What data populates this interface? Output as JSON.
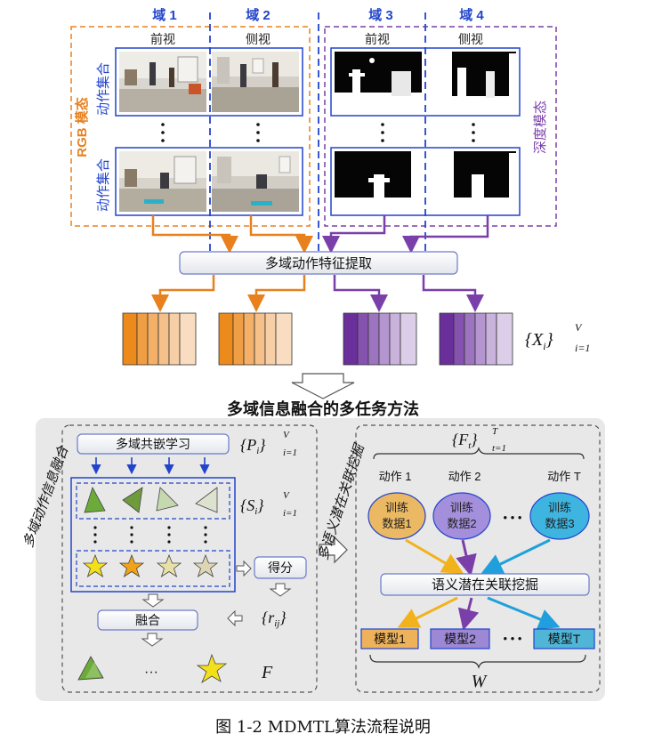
{
  "domains": [
    "域 1",
    "域 2",
    "域 3",
    "域 4"
  ],
  "views": [
    "前视",
    "侧视",
    "前视",
    "侧视"
  ],
  "action_set_label": "动作集合",
  "rgb_modality": "RGB 模态",
  "depth_modality": "深度模态",
  "feature_extraction": "多域动作特征提取",
  "features_set": {
    "base": "{X",
    "sub": "i",
    "close": "}",
    "sup": "V",
    "lim": "i=1"
  },
  "method_title": "多域信息融合的多任务方法",
  "left_panel": {
    "title": "多域动作信息融合",
    "shared_embedding": "多域共嵌学习",
    "p_set": {
      "base": "{P",
      "sub": "i",
      "close": "}",
      "sup": "V",
      "lim": "i=1"
    },
    "s_set": {
      "base": "{S",
      "sub": "i",
      "close": "}",
      "sup": "V",
      "lim": "i=1"
    },
    "score": "得分",
    "r_set": {
      "base": "{r",
      "sub": "ij",
      "close": "}"
    },
    "fusion": "融合",
    "ellipsis": "···",
    "F": "F"
  },
  "right_panel": {
    "title": "多语义潜在关联挖掘",
    "f_set": {
      "base": "{F",
      "sub": "t",
      "close": "}",
      "sup": "T",
      "lim": "t=1"
    },
    "actions": [
      "动作 1",
      "动作 2",
      "动作 T"
    ],
    "training": [
      {
        "line1": "训练",
        "line2": "数据1",
        "color": "#ebb963"
      },
      {
        "line1": "训练",
        "line2": "数据2",
        "color": "#a48fdc"
      },
      {
        "line1": "训练",
        "line2": "数据3",
        "color": "#3eb5e0"
      }
    ],
    "dots": "• • •",
    "semantic": "语义潜在关联挖掘",
    "models": [
      {
        "label": "模型1",
        "color": "#eeb35a"
      },
      {
        "label": "模型2",
        "color": "#9c88d4"
      },
      {
        "label": "模型T",
        "color": "#4fb6d8"
      }
    ],
    "W": "W"
  },
  "caption": "图 1-2 MDMTL算法流程说明",
  "colors": {
    "orange": "#e8801e",
    "purple": "#7a3fa8",
    "blue": "#2244cc"
  }
}
